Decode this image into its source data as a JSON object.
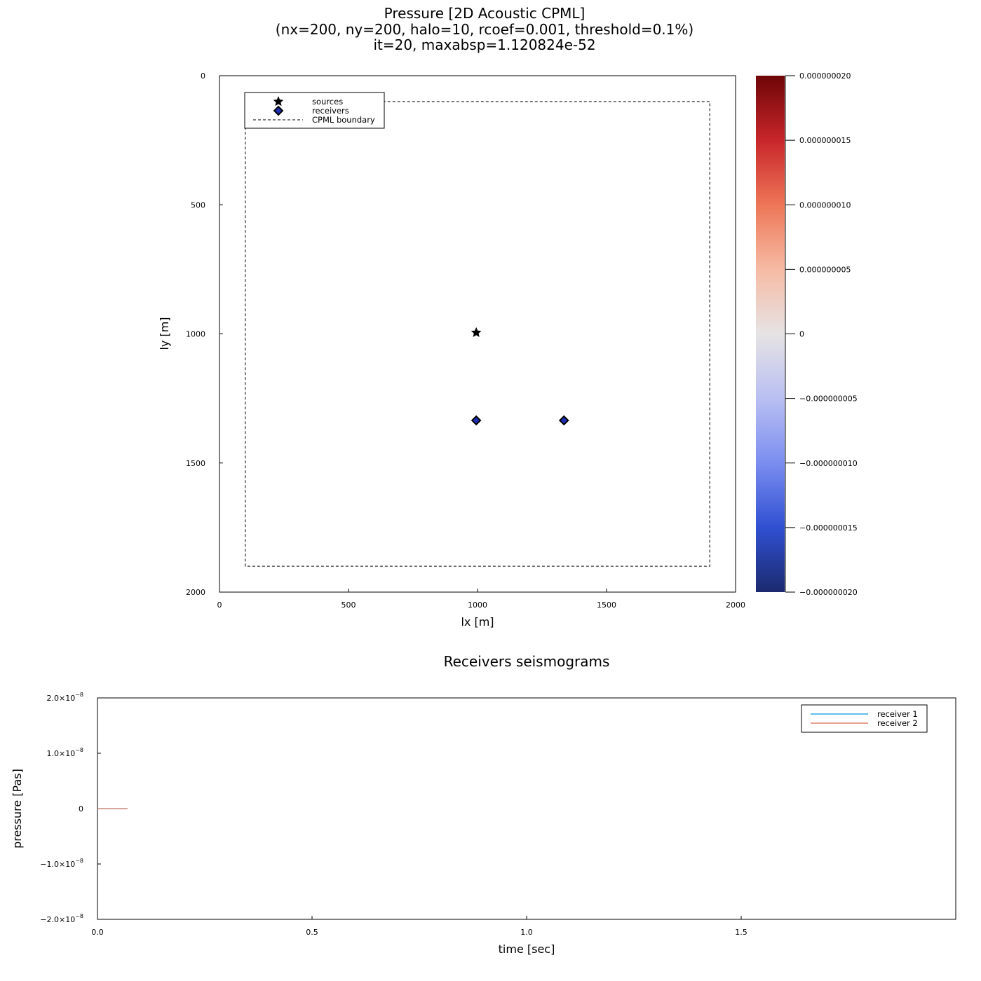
{
  "chart_data": [
    {
      "type": "heatmap",
      "title": [
        "Pressure [2D Acoustic CPML]",
        "(nx=200, ny=200, halo=10, rcoef=0.001, threshold=0.1%)",
        "it=20, maxabsp=1.120824e-52"
      ],
      "xlabel": "lx [m]",
      "ylabel": "ly [m]",
      "xlim": [
        0,
        2000
      ],
      "ylim": [
        0,
        2000
      ],
      "y_reversed": true,
      "xticks": [
        0,
        500,
        1000,
        1500,
        2000
      ],
      "yticks": [
        0,
        500,
        1000,
        1500,
        2000
      ],
      "grid": false,
      "field": "near-zero everywhere (white)",
      "sources": [
        {
          "x": 995,
          "y": 995
        }
      ],
      "receivers": [
        {
          "x": 995,
          "y": 1335
        },
        {
          "x": 1335,
          "y": 1335
        }
      ],
      "cpml_boundary": {
        "x": [
          100,
          1900
        ],
        "y": [
          100,
          1900
        ]
      },
      "legend": {
        "placement": "top-left",
        "entries": [
          {
            "label": "sources",
            "marker": "star",
            "color": "#000000"
          },
          {
            "label": "receivers",
            "marker": "diamond",
            "color": "#1f2fb5"
          },
          {
            "label": "CPML boundary",
            "style": "dashed",
            "color": "#555555"
          }
        ]
      },
      "colorbar": {
        "colormap": "coolwarm",
        "range": [
          -2e-08,
          2e-08
        ],
        "ticks": [
          {
            "value": 2e-08,
            "label": "0.000000020"
          },
          {
            "value": 1.5e-08,
            "label": "0.000000015"
          },
          {
            "value": 1e-08,
            "label": "0.000000010"
          },
          {
            "value": 5e-09,
            "label": "0.000000005"
          },
          {
            "value": 0,
            "label": "0"
          },
          {
            "value": -5e-09,
            "label": "−0.000000005"
          },
          {
            "value": -1e-08,
            "label": "−0.000000010"
          },
          {
            "value": -1.5e-08,
            "label": "−0.000000015"
          },
          {
            "value": -2e-08,
            "label": "−0.000000020"
          }
        ],
        "colors": [
          "#1b2a6e",
          "#3050d2",
          "#7b8ef0",
          "#b9bff2",
          "#e6e3e4",
          "#f6bba4",
          "#ee7657",
          "#c8262a",
          "#6e0507"
        ]
      }
    },
    {
      "type": "line",
      "title": "Receivers seismograms",
      "xlabel": "time [sec]",
      "ylabel": "pressure [Pas]",
      "xlim": [
        0,
        2.0
      ],
      "ylim": [
        -2e-08,
        2e-08
      ],
      "xticks": [
        {
          "value": 0,
          "label": "0.0"
        },
        {
          "value": 0.5,
          "label": "0.5"
        },
        {
          "value": 1.0,
          "label": "1.0"
        },
        {
          "value": 1.5,
          "label": "1.5"
        }
      ],
      "yticks": [
        {
          "value": 2e-08,
          "mantissa": "2.0×10",
          "exp": "−8"
        },
        {
          "value": 1e-08,
          "mantissa": "1.0×10",
          "exp": "−8"
        },
        {
          "value": 0,
          "mantissa": "0",
          "exp": ""
        },
        {
          "value": -1e-08,
          "mantissa": "−1.0×10",
          "exp": "−8"
        },
        {
          "value": -2e-08,
          "mantissa": "−2.0×10",
          "exp": "−8"
        }
      ],
      "grid": false,
      "legend": {
        "placement": "top-right"
      },
      "series": [
        {
          "name": "receiver 1",
          "color": "#29a8e0",
          "x": [
            0,
            0.07
          ],
          "y": [
            0,
            0
          ]
        },
        {
          "name": "receiver 2",
          "color": "#e0806a",
          "x": [
            0,
            0.07
          ],
          "y": [
            0,
            0
          ]
        }
      ]
    }
  ]
}
